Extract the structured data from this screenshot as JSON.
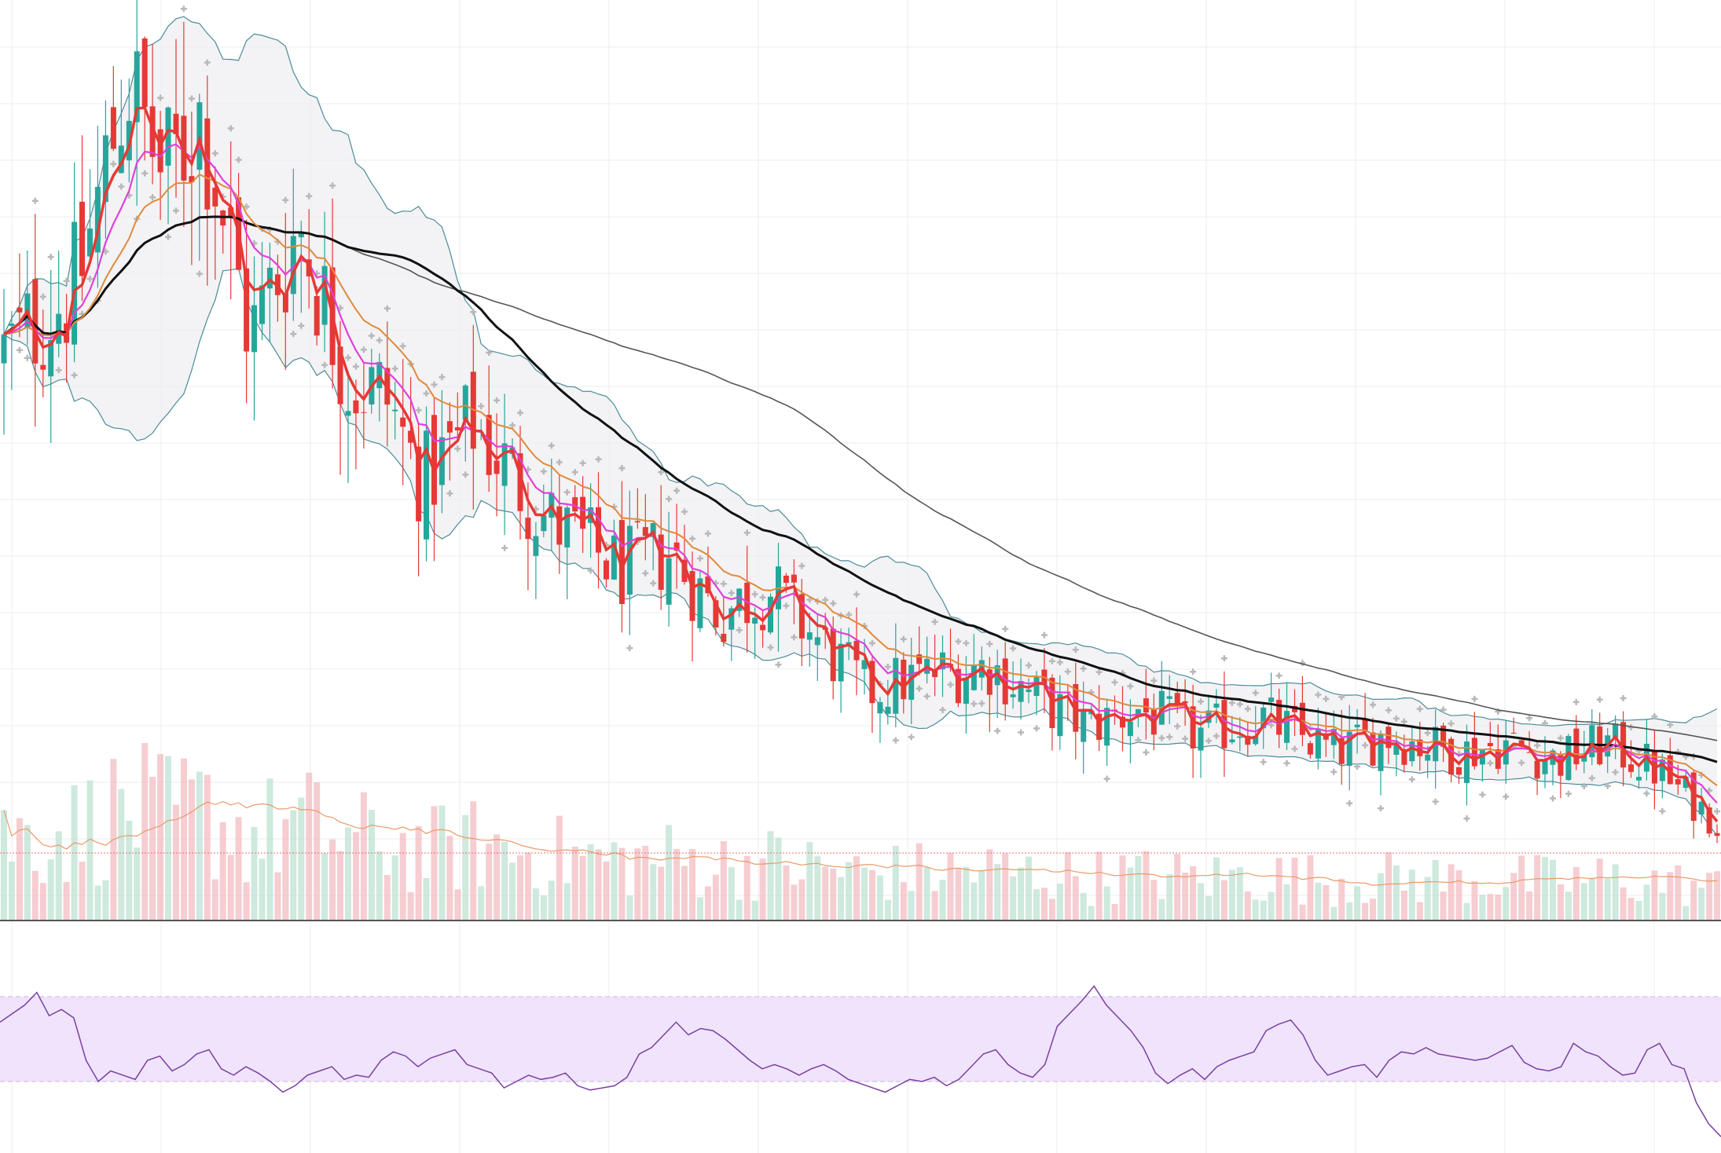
{
  "chart_data": [
    {
      "type": "candlestick",
      "title": "",
      "xlabel": "",
      "ylabel": "",
      "overlays": [
        "bollinger-bands",
        "ema-fast",
        "ema-medium",
        "sma-mid",
        "sma-long",
        "parabolic-sar"
      ],
      "grid": true,
      "legend": "none",
      "colors": {
        "up": "#26a69a",
        "down": "#e53935",
        "bollinger_band": "#4a8c99",
        "bollinger_fill": "#efedf0",
        "ema_fast": "#e53935",
        "ema_medium": "#e040d8",
        "sma_mid": "#e08a3c",
        "sma_long": "#111111",
        "sma_longest": "#555555",
        "sar": "#b8b8b8",
        "grid": "#ececec"
      },
      "price_path": [
        {
          "x": 0,
          "y": 60
        },
        {
          "x": 6,
          "y": 68
        },
        {
          "x": 10,
          "y": 92
        },
        {
          "x": 13,
          "y": 80
        },
        {
          "x": 16,
          "y": 88
        },
        {
          "x": 20,
          "y": 62
        },
        {
          "x": 24,
          "y": 75
        },
        {
          "x": 28,
          "y": 57
        },
        {
          "x": 31,
          "y": 55
        },
        {
          "x": 34,
          "y": 45
        },
        {
          "x": 38,
          "y": 52
        },
        {
          "x": 44,
          "y": 41
        },
        {
          "x": 50,
          "y": 35
        },
        {
          "x": 54,
          "y": 37
        },
        {
          "x": 58,
          "y": 30
        },
        {
          "x": 62,
          "y": 33
        },
        {
          "x": 66,
          "y": 27
        },
        {
          "x": 70,
          "y": 21
        },
        {
          "x": 75,
          "y": 23
        },
        {
          "x": 80,
          "y": 24
        },
        {
          "x": 84,
          "y": 20
        },
        {
          "x": 88,
          "y": 17
        },
        {
          "x": 92,
          "y": 19
        },
        {
          "x": 97,
          "y": 16
        },
        {
          "x": 102,
          "y": 18
        },
        {
          "x": 108,
          "y": 14
        },
        {
          "x": 112,
          "y": 16
        },
        {
          "x": 118,
          "y": 14
        },
        {
          "x": 122,
          "y": 15
        },
        {
          "x": 126,
          "y": 13
        },
        {
          "x": 130,
          "y": 15
        },
        {
          "x": 134,
          "y": 12
        },
        {
          "x": 139,
          "y": 6
        }
      ],
      "volume": {
        "ma_line": true,
        "spike_labels": []
      }
    },
    {
      "type": "line",
      "indicator": "RSI",
      "title": "",
      "band": [
        30,
        70
      ],
      "ylim": [
        0,
        100
      ],
      "values": [
        58,
        62,
        66,
        72,
        61,
        64,
        60,
        40,
        30,
        35,
        33,
        31,
        40,
        42,
        35,
        38,
        43,
        45,
        36,
        33,
        37,
        34,
        30,
        25,
        28,
        33,
        35,
        37,
        31,
        33,
        32,
        40,
        44,
        42,
        37,
        41,
        43,
        45,
        38,
        36,
        34,
        27,
        30,
        33,
        31,
        32,
        34,
        28,
        26,
        27,
        28,
        32,
        43,
        46,
        52,
        58,
        52,
        55,
        54,
        50,
        45,
        40,
        36,
        38,
        36,
        33,
        36,
        38,
        35,
        31,
        29,
        27,
        25,
        28,
        31,
        30,
        32,
        28,
        31,
        37,
        43,
        45,
        38,
        34,
        32,
        38,
        56,
        62,
        68,
        75,
        66,
        60,
        54,
        46,
        34,
        29,
        33,
        36,
        31,
        37,
        40,
        42,
        44,
        54,
        57,
        59,
        52,
        40,
        33,
        35,
        37,
        38,
        32,
        40,
        44,
        43,
        46,
        43,
        42,
        41,
        40,
        41,
        44,
        47,
        39,
        36,
        35,
        37,
        48,
        44,
        42,
        37,
        33,
        34,
        45,
        48,
        38,
        36,
        20,
        10,
        4
      ]
    }
  ]
}
